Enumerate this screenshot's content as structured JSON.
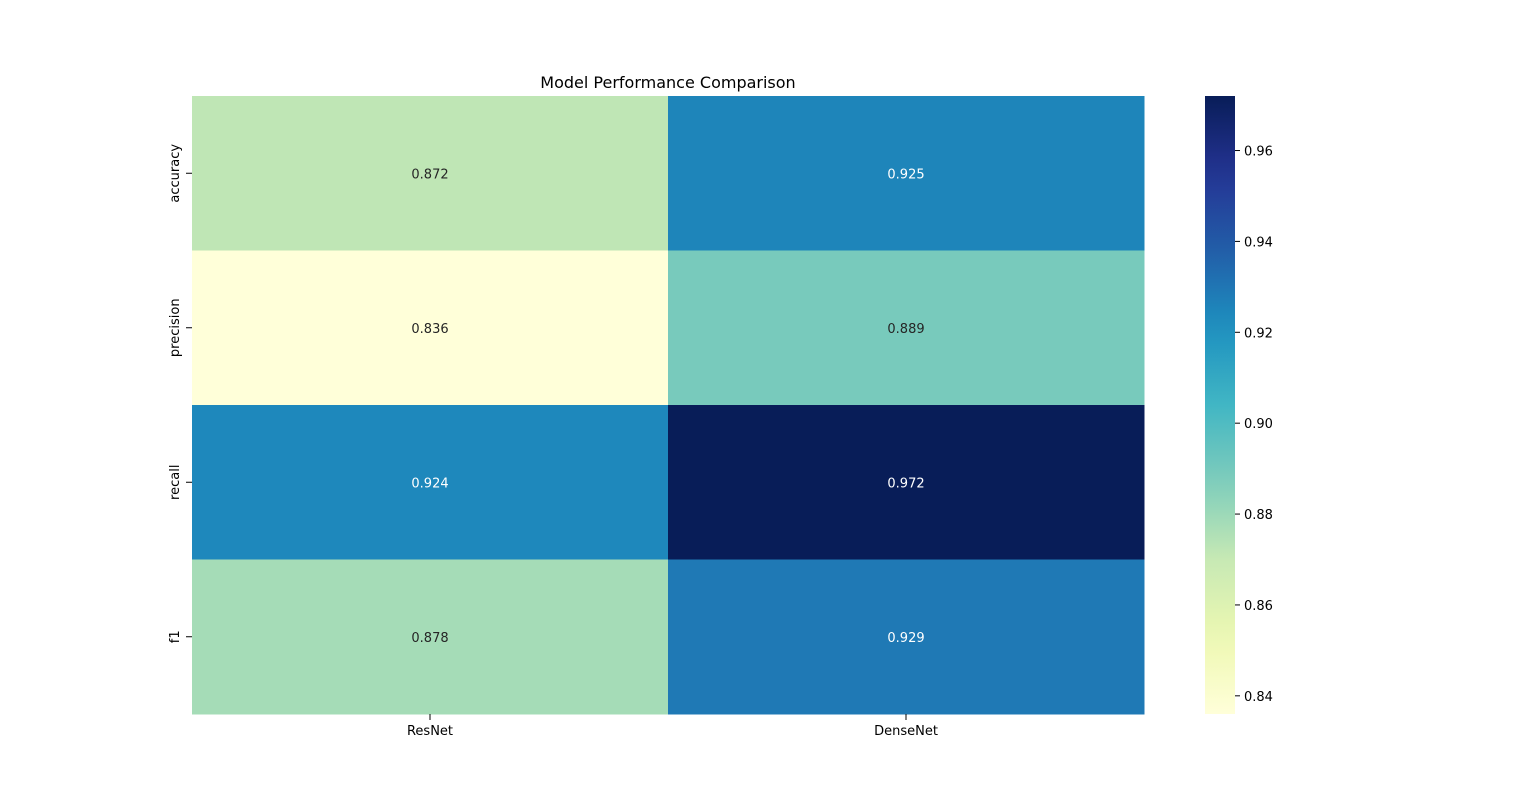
{
  "chart_data": {
    "type": "heatmap",
    "title": "Model Performance Comparison",
    "xlabel": "",
    "ylabel": "",
    "columns": [
      "ResNet",
      "DenseNet"
    ],
    "rows": [
      "accuracy",
      "precision",
      "recall",
      "f1"
    ],
    "values": [
      [
        0.872,
        0.925
      ],
      [
        0.836,
        0.889
      ],
      [
        0.924,
        0.972
      ],
      [
        0.878,
        0.929
      ]
    ],
    "colormap": "YlGnBu",
    "colorbar": {
      "range": [
        0.836,
        0.972
      ],
      "ticks": [
        0.84,
        0.86,
        0.88,
        0.9,
        0.92,
        0.94,
        0.96
      ],
      "tick_labels": [
        "0.84",
        "0.86",
        "0.88",
        "0.90",
        "0.92",
        "0.94",
        "0.96"
      ]
    },
    "annotations": true,
    "legend": "colorbar right"
  }
}
